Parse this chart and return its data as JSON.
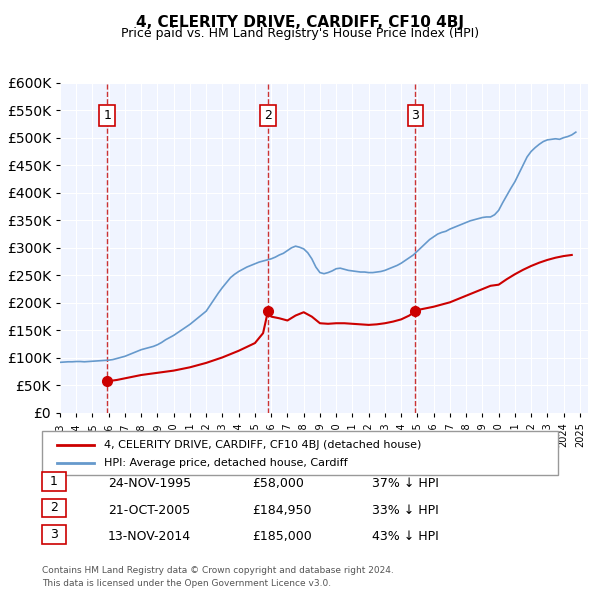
{
  "title": "4, CELERITY DRIVE, CARDIFF, CF10 4BJ",
  "subtitle": "Price paid vs. HM Land Registry's House Price Index (HPI)",
  "legend_label_red": "4, CELERITY DRIVE, CARDIFF, CF10 4BJ (detached house)",
  "legend_label_blue": "HPI: Average price, detached house, Cardiff",
  "footnote1": "Contains HM Land Registry data © Crown copyright and database right 2024.",
  "footnote2": "This data is licensed under the Open Government Licence v3.0.",
  "red_color": "#cc0000",
  "blue_color": "#6699cc",
  "sale_color": "#cc0000",
  "vline_color": "#cc3333",
  "marker_color": "#cc0000",
  "purchases": [
    {
      "label": "1",
      "date": 1995.9,
      "price": 58000
    },
    {
      "label": "2",
      "date": 2005.8,
      "price": 184950
    },
    {
      "label": "3",
      "date": 2014.87,
      "price": 185000
    }
  ],
  "table_rows": [
    {
      "num": "1",
      "date": "24-NOV-1995",
      "price": "£58,000",
      "hpi": "37% ↓ HPI"
    },
    {
      "num": "2",
      "date": "21-OCT-2005",
      "price": "£184,950",
      "hpi": "33% ↓ HPI"
    },
    {
      "num": "3",
      "date": "13-NOV-2014",
      "price": "£185,000",
      "hpi": "43% ↓ HPI"
    }
  ],
  "ylim": [
    0,
    600000
  ],
  "yticks": [
    0,
    50000,
    100000,
    150000,
    200000,
    250000,
    300000,
    350000,
    400000,
    450000,
    500000,
    550000,
    600000
  ],
  "xlim_start": 1993.0,
  "xlim_end": 2025.5,
  "xticks": [
    1993,
    1994,
    1995,
    1996,
    1997,
    1998,
    1999,
    2000,
    2001,
    2002,
    2003,
    2004,
    2005,
    2006,
    2007,
    2008,
    2009,
    2010,
    2011,
    2012,
    2013,
    2014,
    2015,
    2016,
    2017,
    2018,
    2019,
    2020,
    2021,
    2022,
    2023,
    2024,
    2025
  ],
  "hpi_x": [
    1993.0,
    1993.25,
    1993.5,
    1993.75,
    1994.0,
    1994.25,
    1994.5,
    1994.75,
    1995.0,
    1995.25,
    1995.5,
    1995.75,
    1996.0,
    1996.25,
    1996.5,
    1996.75,
    1997.0,
    1997.25,
    1997.5,
    1997.75,
    1998.0,
    1998.25,
    1998.5,
    1998.75,
    1999.0,
    1999.25,
    1999.5,
    1999.75,
    2000.0,
    2000.25,
    2000.5,
    2000.75,
    2001.0,
    2001.25,
    2001.5,
    2001.75,
    2002.0,
    2002.25,
    2002.5,
    2002.75,
    2003.0,
    2003.25,
    2003.5,
    2003.75,
    2004.0,
    2004.25,
    2004.5,
    2004.75,
    2005.0,
    2005.25,
    2005.5,
    2005.75,
    2006.0,
    2006.25,
    2006.5,
    2006.75,
    2007.0,
    2007.25,
    2007.5,
    2007.75,
    2008.0,
    2008.25,
    2008.5,
    2008.75,
    2009.0,
    2009.25,
    2009.5,
    2009.75,
    2010.0,
    2010.25,
    2010.5,
    2010.75,
    2011.0,
    2011.25,
    2011.5,
    2011.75,
    2012.0,
    2012.25,
    2012.5,
    2012.75,
    2013.0,
    2013.25,
    2013.5,
    2013.75,
    2014.0,
    2014.25,
    2014.5,
    2014.75,
    2015.0,
    2015.25,
    2015.5,
    2015.75,
    2016.0,
    2016.25,
    2016.5,
    2016.75,
    2017.0,
    2017.25,
    2017.5,
    2017.75,
    2018.0,
    2018.25,
    2018.5,
    2018.75,
    2019.0,
    2019.25,
    2019.5,
    2019.75,
    2020.0,
    2020.25,
    2020.5,
    2020.75,
    2021.0,
    2021.25,
    2021.5,
    2021.75,
    2022.0,
    2022.25,
    2022.5,
    2022.75,
    2023.0,
    2023.25,
    2023.5,
    2023.75,
    2024.0,
    2024.25,
    2024.5,
    2024.75
  ],
  "hpi_y": [
    92000,
    92500,
    93000,
    93000,
    93500,
    93500,
    93000,
    93500,
    94000,
    94500,
    95000,
    95500,
    96000,
    97000,
    99000,
    101000,
    103000,
    106000,
    109000,
    112000,
    115000,
    117000,
    119000,
    121000,
    124000,
    128000,
    133000,
    137000,
    141000,
    146000,
    151000,
    156000,
    161000,
    167000,
    173000,
    179000,
    185000,
    196000,
    207000,
    218000,
    228000,
    237000,
    246000,
    252000,
    257000,
    261000,
    265000,
    268000,
    271000,
    274000,
    276000,
    278000,
    280000,
    283000,
    287000,
    290000,
    295000,
    300000,
    303000,
    301000,
    298000,
    291000,
    280000,
    265000,
    255000,
    253000,
    255000,
    258000,
    262000,
    263000,
    261000,
    259000,
    258000,
    257000,
    256000,
    256000,
    255000,
    255000,
    256000,
    257000,
    259000,
    262000,
    265000,
    268000,
    272000,
    277000,
    282000,
    287000,
    294000,
    301000,
    308000,
    315000,
    320000,
    325000,
    328000,
    330000,
    334000,
    337000,
    340000,
    343000,
    346000,
    349000,
    351000,
    353000,
    355000,
    356000,
    356000,
    360000,
    368000,
    382000,
    395000,
    408000,
    420000,
    435000,
    450000,
    465000,
    475000,
    482000,
    488000,
    493000,
    496000,
    497000,
    498000,
    497000,
    500000,
    502000,
    505000,
    510000
  ],
  "red_x": [
    1993.0,
    1993.5,
    1994.0,
    1994.5,
    1995.0,
    1995.5,
    1995.9,
    1996.0,
    1996.5,
    1997.0,
    1997.5,
    1998.0,
    1998.5,
    1999.0,
    1999.5,
    2000.0,
    2000.5,
    2001.0,
    2001.5,
    2002.0,
    2002.5,
    2003.0,
    2003.5,
    2004.0,
    2004.5,
    2005.0,
    2005.5,
    2005.8,
    2006.0,
    2006.5,
    2007.0,
    2007.5,
    2008.0,
    2008.5,
    2009.0,
    2009.5,
    2010.0,
    2010.5,
    2011.0,
    2011.5,
    2012.0,
    2012.5,
    2013.0,
    2013.5,
    2014.0,
    2014.5,
    2014.87,
    2015.0,
    2015.5,
    2016.0,
    2016.5,
    2017.0,
    2017.5,
    2018.0,
    2018.5,
    2019.0,
    2019.5,
    2020.0,
    2020.5,
    2021.0,
    2021.5,
    2022.0,
    2022.5,
    2023.0,
    2023.5,
    2024.0,
    2024.5
  ],
  "red_y": [
    null,
    null,
    null,
    null,
    null,
    null,
    58000,
    58000,
    60000,
    63000,
    66000,
    69000,
    71000,
    73000,
    75000,
    77000,
    80000,
    83000,
    87000,
    91000,
    96000,
    101000,
    107000,
    113000,
    120000,
    127000,
    145000,
    184950,
    175000,
    172000,
    168000,
    177000,
    183000,
    175000,
    163000,
    162000,
    163000,
    163000,
    162000,
    161000,
    160000,
    161000,
    163000,
    166000,
    170000,
    177000,
    185000,
    187000,
    190000,
    193000,
    197000,
    201000,
    207000,
    213000,
    219000,
    225000,
    231000,
    233000,
    243000,
    252000,
    260000,
    267000,
    273000,
    278000,
    282000,
    285000,
    287000
  ]
}
